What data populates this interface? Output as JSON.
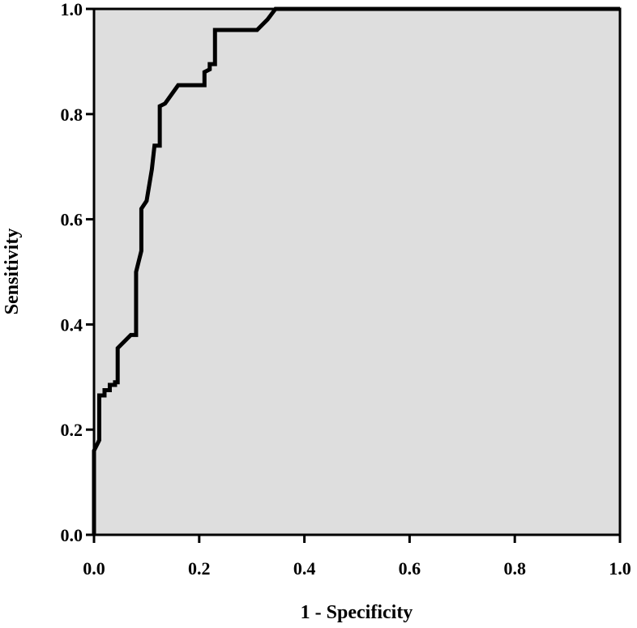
{
  "chart_data": {
    "type": "line",
    "title": "",
    "xlabel": "1 - Specificity",
    "ylabel": "Sensitivity",
    "xlim": [
      0.0,
      1.0
    ],
    "ylim": [
      0.0,
      1.0
    ],
    "x_ticks": [
      "0.0",
      "0.2",
      "0.4",
      "0.6",
      "0.8",
      "1.0"
    ],
    "y_ticks": [
      "0.0",
      "0.2",
      "0.4",
      "0.6",
      "0.8",
      "1.0"
    ],
    "grid": false,
    "legend": "none",
    "plot_background": "#dedede",
    "line_color": "#000000",
    "series": [
      {
        "x": [
          0.0,
          0.0,
          0.01,
          0.01,
          0.02,
          0.02,
          0.03,
          0.03,
          0.04,
          0.04,
          0.045,
          0.045,
          0.06,
          0.07,
          0.08,
          0.08,
          0.09,
          0.09,
          0.1,
          0.105,
          0.11,
          0.115,
          0.115,
          0.125,
          0.125,
          0.135,
          0.16,
          0.18,
          0.2,
          0.21,
          0.21,
          0.22,
          0.22,
          0.23,
          0.23,
          0.26,
          0.28,
          0.31,
          0.33,
          0.345,
          1.0
        ],
        "y": [
          0.0,
          0.16,
          0.18,
          0.265,
          0.265,
          0.275,
          0.275,
          0.285,
          0.285,
          0.29,
          0.29,
          0.355,
          0.37,
          0.38,
          0.38,
          0.5,
          0.54,
          0.62,
          0.635,
          0.665,
          0.695,
          0.74,
          0.74,
          0.74,
          0.815,
          0.82,
          0.855,
          0.855,
          0.855,
          0.855,
          0.88,
          0.885,
          0.895,
          0.895,
          0.96,
          0.96,
          0.96,
          0.96,
          0.98,
          1.0,
          1.0
        ]
      }
    ]
  }
}
